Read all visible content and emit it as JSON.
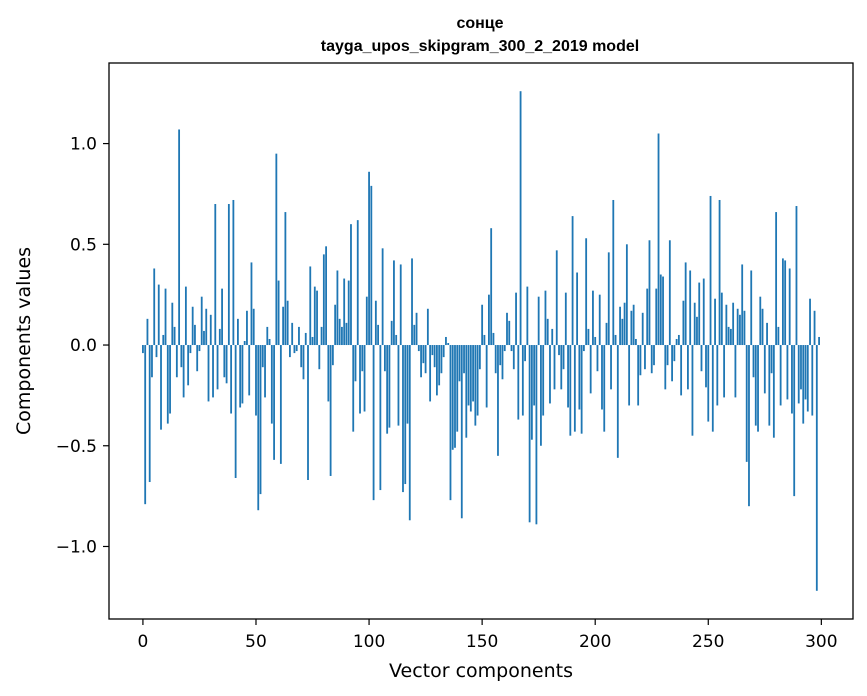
{
  "chart_data": {
    "type": "bar",
    "title": "сонце",
    "subtitle": "tayga_upos_skipgram_300_2_2019 model",
    "xlabel": "Vector components",
    "ylabel": "Components values",
    "xlim": [
      -15,
      314
    ],
    "ylim": [
      -1.36,
      1.4
    ],
    "xticks": [
      0,
      50,
      100,
      150,
      200,
      250,
      300
    ],
    "yticks": [
      -1.0,
      -0.5,
      0.0,
      0.5,
      1.0
    ],
    "xtick_labels": [
      "0",
      "50",
      "100",
      "150",
      "200",
      "250",
      "300"
    ],
    "ytick_labels": [
      "−1.0",
      "−0.5",
      "0.0",
      "0.5",
      "1.0"
    ],
    "bar_color": "#1f77b4",
    "grid": false,
    "x": [
      0,
      1,
      2,
      3,
      4,
      5,
      6,
      7,
      8,
      9,
      10,
      11,
      12,
      13,
      14,
      15,
      16,
      17,
      18,
      19,
      20,
      21,
      22,
      23,
      24,
      25,
      26,
      27,
      28,
      29,
      30,
      31,
      32,
      33,
      34,
      35,
      36,
      37,
      38,
      39,
      40,
      41,
      42,
      43,
      44,
      45,
      46,
      47,
      48,
      49,
      50,
      51,
      52,
      53,
      54,
      55,
      56,
      57,
      58,
      59,
      60,
      61,
      62,
      63,
      64,
      65,
      66,
      67,
      68,
      69,
      70,
      71,
      72,
      73,
      74,
      75,
      76,
      77,
      78,
      79,
      80,
      81,
      82,
      83,
      84,
      85,
      86,
      87,
      88,
      89,
      90,
      91,
      92,
      93,
      94,
      95,
      96,
      97,
      98,
      99,
      100,
      101,
      102,
      103,
      104,
      105,
      106,
      107,
      108,
      109,
      110,
      111,
      112,
      113,
      114,
      115,
      116,
      117,
      118,
      119,
      120,
      121,
      122,
      123,
      124,
      125,
      126,
      127,
      128,
      129,
      130,
      131,
      132,
      133,
      134,
      135,
      136,
      137,
      138,
      139,
      140,
      141,
      142,
      143,
      144,
      145,
      146,
      147,
      148,
      149,
      150,
      151,
      152,
      153,
      154,
      155,
      156,
      157,
      158,
      159,
      160,
      161,
      162,
      163,
      164,
      165,
      166,
      167,
      168,
      169,
      170,
      171,
      172,
      173,
      174,
      175,
      176,
      177,
      178,
      179,
      180,
      181,
      182,
      183,
      184,
      185,
      186,
      187,
      188,
      189,
      190,
      191,
      192,
      193,
      194,
      195,
      196,
      197,
      198,
      199,
      200,
      201,
      202,
      203,
      204,
      205,
      206,
      207,
      208,
      209,
      210,
      211,
      212,
      213,
      214,
      215,
      216,
      217,
      218,
      219,
      220,
      221,
      222,
      223,
      224,
      225,
      226,
      227,
      228,
      229,
      230,
      231,
      232,
      233,
      234,
      235,
      236,
      237,
      238,
      239,
      240,
      241,
      242,
      243,
      244,
      245,
      246,
      247,
      248,
      249,
      250,
      251,
      252,
      253,
      254,
      255,
      256,
      257,
      258,
      259,
      260,
      261,
      262,
      263,
      264,
      265,
      266,
      267,
      268,
      269,
      270,
      271,
      272,
      273,
      274,
      275,
      276,
      277,
      278,
      279,
      280,
      281,
      282,
      283,
      284,
      285,
      286,
      287,
      288,
      289,
      290,
      291,
      292,
      293,
      294,
      295,
      296,
      297,
      298,
      299
    ],
    "values": [
      -0.04,
      -0.79,
      0.13,
      -0.68,
      -0.16,
      0.38,
      -0.06,
      0.3,
      -0.42,
      0.05,
      0.28,
      -0.39,
      -0.34,
      0.21,
      0.09,
      -0.16,
      1.07,
      -0.11,
      -0.26,
      0.29,
      -0.2,
      -0.04,
      0.19,
      0.1,
      -0.13,
      -0.03,
      0.24,
      0.07,
      0.18,
      -0.28,
      0.15,
      -0.26,
      0.7,
      -0.22,
      0.08,
      0.28,
      -0.16,
      -0.19,
      0.7,
      -0.34,
      0.72,
      -0.66,
      0.13,
      -0.31,
      -0.29,
      0.02,
      0.17,
      -0.25,
      0.41,
      0.18,
      -0.35,
      -0.82,
      -0.74,
      -0.11,
      -0.26,
      0.09,
      0.03,
      -0.39,
      -0.57,
      0.95,
      0.32,
      -0.59,
      0.19,
      0.66,
      0.22,
      -0.06,
      0.11,
      -0.04,
      -0.03,
      0.09,
      -0.11,
      -0.17,
      0.06,
      -0.67,
      0.39,
      0.04,
      0.29,
      0.27,
      -0.12,
      0.09,
      0.45,
      0.49,
      -0.28,
      -0.65,
      -0.1,
      0.2,
      0.37,
      0.13,
      0.09,
      0.33,
      0.11,
      0.32,
      0.6,
      -0.43,
      -0.18,
      0.62,
      -0.34,
      -0.13,
      -0.33,
      0.24,
      0.86,
      0.79,
      -0.77,
      0.22,
      0.1,
      -0.72,
      0.48,
      -0.13,
      -0.44,
      -0.41,
      0.12,
      0.42,
      0.05,
      -0.4,
      0.4,
      -0.73,
      -0.69,
      -0.39,
      -0.87,
      0.43,
      0.1,
      0.16,
      -0.03,
      -0.16,
      -0.09,
      -0.14,
      0.18,
      -0.28,
      -0.05,
      -0.11,
      -0.25,
      -0.2,
      -0.14,
      -0.06,
      0.04,
      0.01,
      -0.77,
      -0.52,
      -0.51,
      -0.43,
      -0.18,
      -0.86,
      -0.14,
      -0.46,
      -0.3,
      -0.33,
      -0.28,
      -0.4,
      -0.35,
      -0.12,
      0.2,
      0.05,
      -0.31,
      0.25,
      0.58,
      0.06,
      -0.14,
      -0.55,
      -0.1,
      -0.17,
      -0.03,
      0.16,
      0.12,
      -0.03,
      -0.12,
      0.26,
      -0.37,
      1.26,
      -0.35,
      -0.08,
      0.29,
      -0.88,
      -0.47,
      -0.3,
      -0.89,
      0.24,
      -0.5,
      -0.35,
      0.27,
      0.13,
      -0.29,
      0.08,
      -0.22,
      0.47,
      -0.05,
      -0.22,
      -0.12,
      0.26,
      -0.31,
      -0.45,
      0.64,
      -0.43,
      0.36,
      -0.32,
      -0.44,
      -0.03,
      0.53,
      0.08,
      -0.24,
      0.27,
      0.04,
      -0.13,
      0.25,
      -0.32,
      -0.43,
      0.11,
      0.46,
      -0.22,
      0.72,
      0.05,
      -0.56,
      0.19,
      0.13,
      0.21,
      0.5,
      -0.3,
      0.17,
      0.2,
      0.03,
      -0.3,
      -0.15,
      0.16,
      -0.12,
      0.28,
      0.52,
      -0.14,
      -0.1,
      0.28,
      1.05,
      0.35,
      0.34,
      -0.22,
      -0.1,
      0.52,
      -0.18,
      -0.08,
      0.03,
      0.05,
      -0.25,
      0.22,
      0.41,
      -0.22,
      0.37,
      -0.45,
      0.21,
      0.14,
      0.31,
      -0.13,
      0.33,
      -0.21,
      -0.38,
      0.74,
      -0.43,
      0.23,
      -0.3,
      0.72,
      0.26,
      -0.26,
      0.2,
      0.09,
      0.08,
      0.21,
      -0.26,
      0.18,
      0.15,
      0.4,
      0.17,
      -0.58,
      -0.8,
      0.37,
      -0.16,
      -0.4,
      -0.43,
      0.24,
      0.18,
      -0.24,
      0.11,
      -0.4,
      -0.14,
      -0.46,
      0.66,
      0.09,
      -0.3,
      0.43,
      0.42,
      -0.27,
      0.38,
      -0.34,
      -0.75,
      0.69,
      -0.29,
      -0.22,
      -0.39,
      -0.27,
      -0.33,
      0.23,
      -0.35,
      0.17,
      -1.22,
      0.04
    ]
  }
}
